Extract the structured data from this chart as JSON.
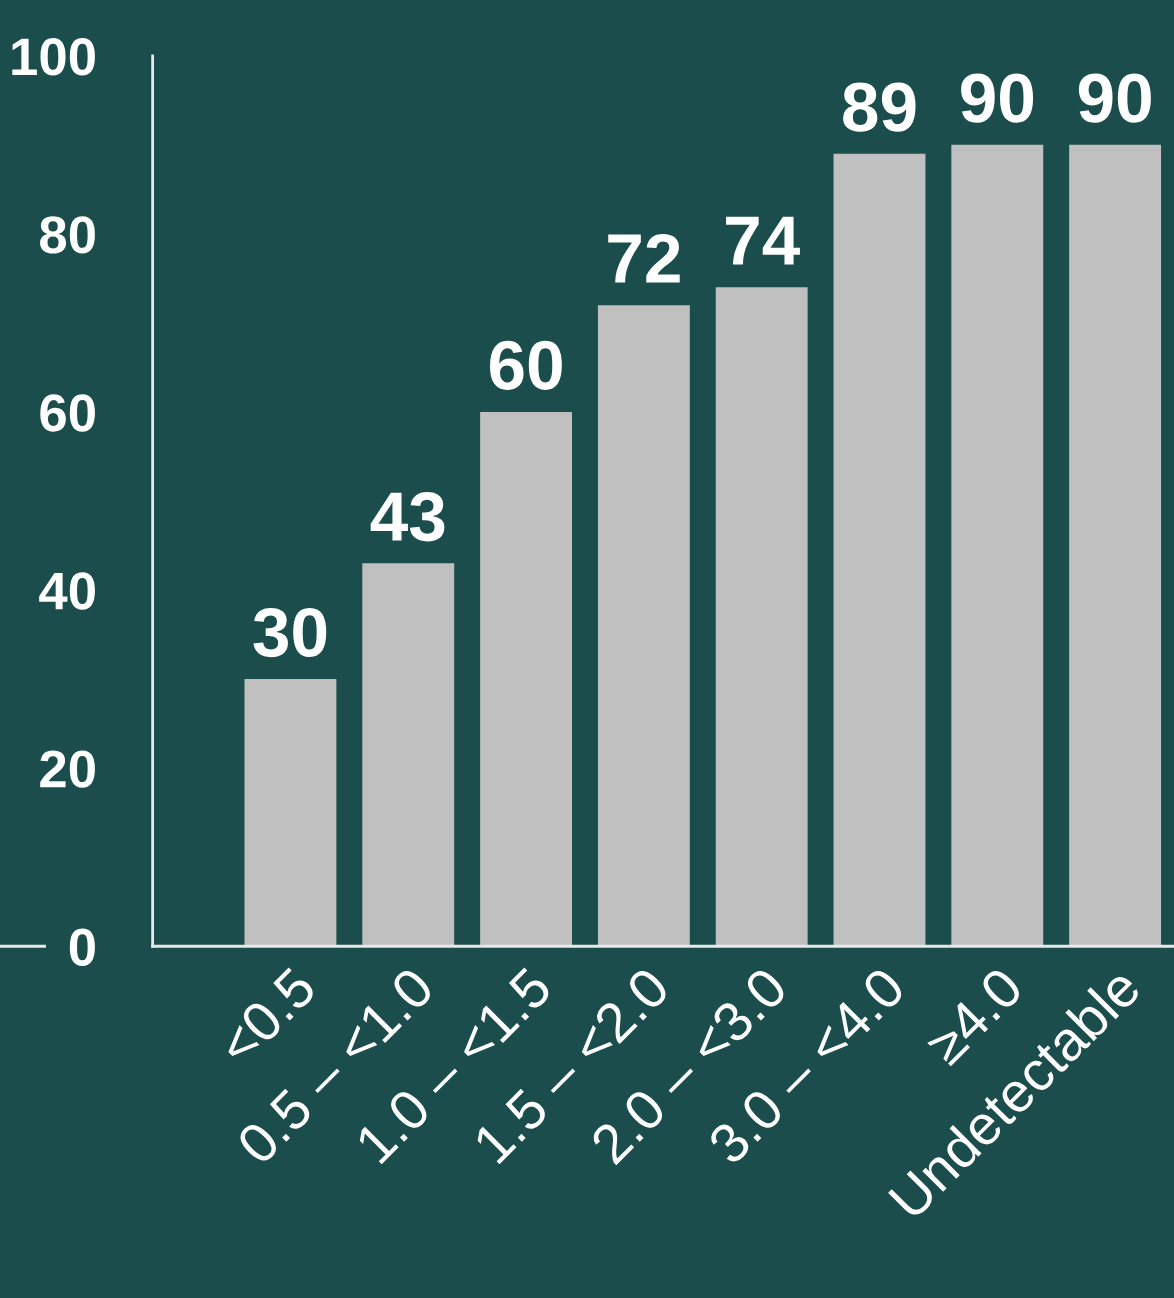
{
  "chart_data": {
    "type": "bar",
    "categories": [
      "<0.5",
      "0.5 – <1.0",
      "1.0 – <1.5",
      "1.5 – <2.0",
      "2.0 – <3.0",
      "3.0 – <4.0",
      "≥4.0",
      "Undetectable"
    ],
    "values": [
      30,
      43,
      60,
      72,
      74,
      89,
      90,
      90
    ],
    "color": "#c0c0c0",
    "ylim": [
      0,
      100
    ],
    "yticks": [
      0,
      20,
      40,
      60,
      80,
      100
    ],
    "data_labels": true,
    "grid": false
  }
}
